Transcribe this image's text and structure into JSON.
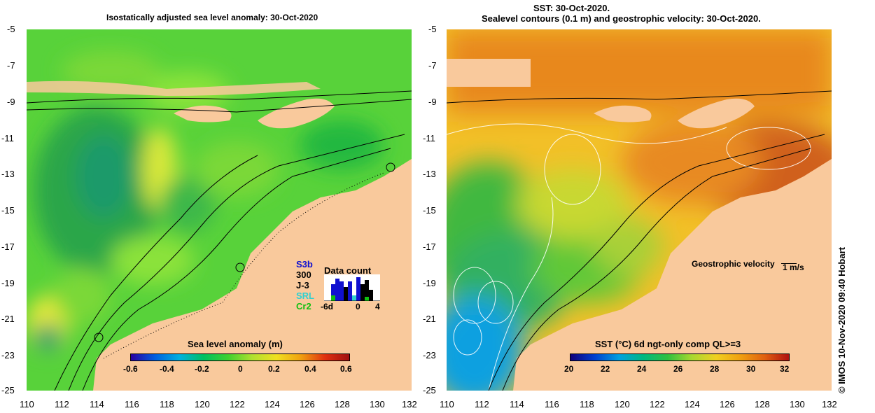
{
  "left_map": {
    "title": "Isostatically adjusted sea level anomaly: 30-Oct-2020",
    "y_ticks": [
      "-5",
      "-7",
      "-9",
      "-11",
      "-13",
      "-15",
      "-17",
      "-19",
      "-21",
      "-23",
      "-25"
    ],
    "x_ticks": [
      "110",
      "112",
      "114",
      "116",
      "118",
      "120",
      "122",
      "124",
      "126",
      "128",
      "130",
      "132"
    ],
    "colorbar": {
      "title": "Sea level anomaly (m)",
      "ticks": [
        "-0.6",
        "-0.4",
        "-0.2",
        "0",
        "0.2",
        "0.4",
        "0.6"
      ]
    },
    "data_count": {
      "title": "Data count",
      "missions": [
        {
          "label": "S3b",
          "color": "#1010d0"
        },
        {
          "label": "300",
          "color": "#000000"
        },
        {
          "label": "J-3",
          "color": "#000000"
        },
        {
          "label": "SRL",
          "color": "#30d0d0"
        },
        {
          "label": "Cr2",
          "color": "#10c010"
        }
      ],
      "x_ticks": [
        "-6d",
        "0",
        "4"
      ]
    }
  },
  "right_map": {
    "title_line1": "SST: 30-Oct-2020.",
    "title_line2": "Sealevel contours (0.1 m) and geostrophic velocity: 30-Oct-2020.",
    "y_ticks": [
      "-5",
      "-7",
      "-9",
      "-11",
      "-13",
      "-15",
      "-17",
      "-19",
      "-21",
      "-23",
      "-25"
    ],
    "x_ticks": [
      "110",
      "112",
      "114",
      "116",
      "118",
      "120",
      "122",
      "124",
      "126",
      "128",
      "130",
      "132"
    ],
    "velocity_label": "Geostrophic velocity",
    "velocity_scale": "1 m/s",
    "colorbar": {
      "title": "SST (°C) 6d ngt-only comp QL>=3",
      "ticks": [
        "20",
        "22",
        "24",
        "26",
        "28",
        "30",
        "32"
      ]
    }
  },
  "credit": "© IMOS 10-Nov-2020 09:40 Hobart",
  "colors": {
    "land": "#f9c99c",
    "sla_green": "#4ccf2c",
    "sst_orange": "#e89a20"
  }
}
